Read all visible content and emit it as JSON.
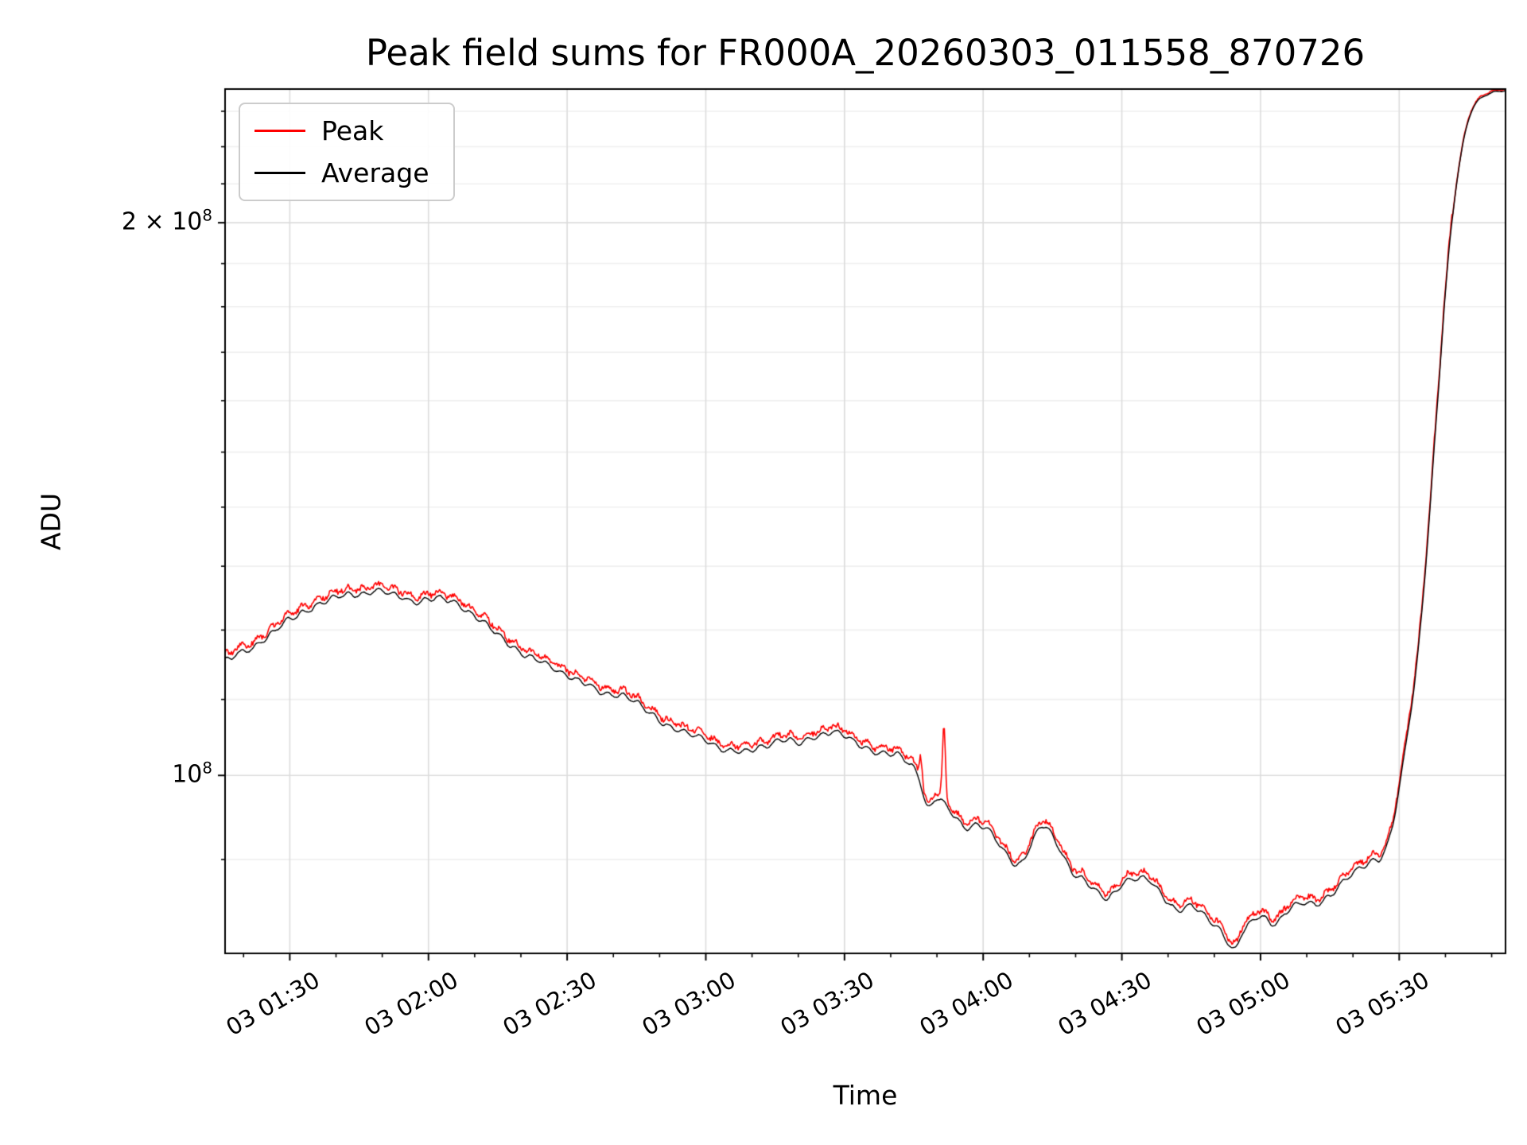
{
  "title": "Peak field sums for FR000A_20260303_011558_870726",
  "axes": {
    "xlabel": "Time",
    "ylabel": "ADU"
  },
  "legend": {
    "items": [
      {
        "label": "Peak",
        "color": "#ff0000"
      },
      {
        "label": "Average",
        "color": "#000000"
      }
    ]
  },
  "chart_data": {
    "type": "line",
    "title": "Peak field sums for FR000A_20260303_011558_870726",
    "xlabel": "Time",
    "ylabel": "ADU",
    "y_scale": "log",
    "ylim_adu": [
      80000000,
      236500000
    ],
    "x_axis_minutes_span": [
      0,
      277
    ],
    "x_ticks": [
      {
        "label": "03 01:30",
        "t_min": 14
      },
      {
        "label": "03 02:00",
        "t_min": 44
      },
      {
        "label": "03 02:30",
        "t_min": 74
      },
      {
        "label": "03 03:00",
        "t_min": 104
      },
      {
        "label": "03 03:30",
        "t_min": 134
      },
      {
        "label": "03 04:00",
        "t_min": 164
      },
      {
        "label": "03 04:30",
        "t_min": 194
      },
      {
        "label": "03 05:00",
        "t_min": 224
      },
      {
        "label": "03 05:30",
        "t_min": 254
      }
    ],
    "y_major_ticks": [
      {
        "mantissa": "2 × 10",
        "exp": "8",
        "value_adu": 200000000
      },
      {
        "mantissa": "10",
        "exp": "8",
        "value_adu": 100000000
      }
    ],
    "y_minor_ticks_adu": [
      90000000,
      110000000,
      120000000,
      130000000,
      140000000,
      150000000,
      160000000,
      170000000,
      180000000,
      190000000,
      210000000,
      220000000,
      230000000
    ],
    "grid": {
      "major_color": "#dcdcdc",
      "minor_color": "#efefef"
    },
    "series": [
      {
        "name": "Peak",
        "color": "#ff0000",
        "relation": "average plus small positive high-frequency fuzz",
        "spikes": [
          {
            "t_min": 150.5,
            "delta_adu_1e8": 0.03
          },
          {
            "t_min": 155.5,
            "delta_adu_1e8": 0.09
          }
        ]
      },
      {
        "name": "Average",
        "color": "#000000",
        "points_t_min": [
          0,
          5,
          10,
          14,
          18,
          22,
          26,
          30,
          34,
          38,
          42,
          46,
          50,
          54,
          58,
          62,
          66,
          70,
          74,
          78,
          82,
          86,
          90,
          95,
          100,
          104,
          108,
          112,
          116,
          120,
          124,
          128,
          131,
          134,
          138,
          142,
          146,
          150,
          152,
          154,
          157,
          160,
          163,
          166,
          169,
          172,
          175,
          177,
          180,
          183,
          186,
          189,
          191,
          194,
          197,
          200,
          203,
          206,
          209,
          212,
          215,
          217,
          218.5,
          220,
          222,
          224,
          227,
          230,
          233,
          236,
          239,
          242,
          245,
          248,
          250,
          252,
          254,
          256,
          258,
          260,
          262,
          264,
          266,
          268,
          270,
          273,
          277
        ],
        "points_adu_1e8": [
          1.155,
          1.17,
          1.195,
          1.215,
          1.232,
          1.245,
          1.252,
          1.257,
          1.258,
          1.251,
          1.244,
          1.247,
          1.24,
          1.222,
          1.198,
          1.178,
          1.158,
          1.148,
          1.135,
          1.12,
          1.108,
          1.107,
          1.09,
          1.068,
          1.053,
          1.045,
          1.034,
          1.028,
          1.036,
          1.046,
          1.041,
          1.051,
          1.056,
          1.049,
          1.037,
          1.029,
          1.023,
          1.0,
          0.962,
          0.972,
          0.955,
          0.938,
          0.942,
          0.927,
          0.905,
          0.896,
          0.925,
          0.938,
          0.916,
          0.89,
          0.877,
          0.862,
          0.856,
          0.873,
          0.879,
          0.874,
          0.859,
          0.846,
          0.849,
          0.836,
          0.825,
          0.812,
          0.805,
          0.82,
          0.83,
          0.836,
          0.831,
          0.846,
          0.851,
          0.851,
          0.862,
          0.876,
          0.886,
          0.899,
          0.904,
          0.928,
          0.982,
          1.06,
          1.16,
          1.33,
          1.56,
          1.83,
          2.06,
          2.22,
          2.31,
          2.35,
          2.36
        ]
      }
    ],
    "noise": {
      "seed": 42,
      "avg_rel_amp": 0.012,
      "peak_rel_offset": 0.004,
      "peak_rel_fuzz": 0.006
    }
  }
}
